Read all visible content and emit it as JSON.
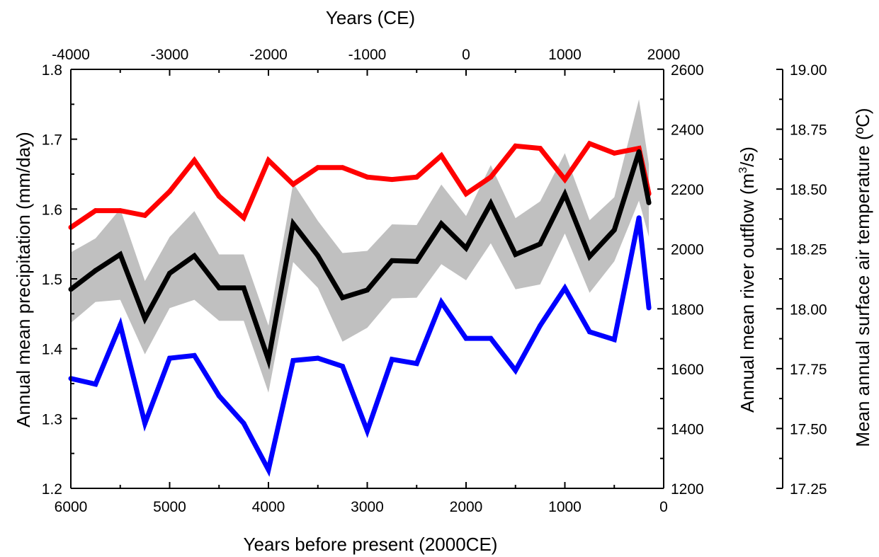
{
  "chart_data": {
    "type": "line",
    "title": "",
    "top_axis": {
      "label": "Years (CE)",
      "ticks": [
        "-4000",
        "-3000",
        "-2000",
        "-1000",
        "0",
        "1000",
        "2000"
      ]
    },
    "x_axis": {
      "label": "Years before present (2000CE)",
      "lim": [
        6000,
        0
      ],
      "ticks": [
        "6000",
        "5000",
        "4000",
        "3000",
        "2000",
        "1000",
        "0"
      ]
    },
    "y_left": {
      "label": "Annual mean precipitation (mm/day)",
      "lim": [
        1.2,
        1.8
      ],
      "ticks": [
        "1.2",
        "1.3",
        "1.4",
        "1.5",
        "1.6",
        "1.7",
        "1.8"
      ]
    },
    "y_right1": {
      "label_main": "Annual mean river outflow (m",
      "label_sup": "3",
      "label_end": "/s)",
      "lim": [
        1200,
        2600
      ],
      "ticks": [
        "1200",
        "1400",
        "1600",
        "1800",
        "2000",
        "2200",
        "2400",
        "2600"
      ]
    },
    "y_right2": {
      "label": "Mean annual surface air temperature (ºC)",
      "lim": [
        17.25,
        19.0
      ],
      "ticks": [
        "17.25",
        "17.50",
        "17.75",
        "18.00",
        "18.25",
        "18.50",
        "18.75",
        "19.00"
      ]
    },
    "x": [
      6000,
      5750,
      5500,
      5250,
      5000,
      4750,
      4500,
      4250,
      4000,
      3750,
      3500,
      3250,
      3000,
      2750,
      2500,
      2250,
      2000,
      1750,
      1500,
      1250,
      1000,
      750,
      500,
      250,
      150
    ],
    "series": [
      {
        "axis": "y_right2",
        "color": "#ff0000",
        "values": [
          18.34,
          18.41,
          18.41,
          18.39,
          18.49,
          18.62,
          18.47,
          18.38,
          18.62,
          18.52,
          18.59,
          18.59,
          18.55,
          18.54,
          18.55,
          18.64,
          18.48,
          18.55,
          18.68,
          18.67,
          18.54,
          18.69,
          18.65,
          18.67,
          18.48
        ]
      },
      {
        "axis": "y_right1",
        "color": "#0000ff",
        "values": [
          1567,
          1548,
          1746,
          1417,
          1635,
          1644,
          1509,
          1417,
          1262,
          1627,
          1635,
          1608,
          1392,
          1631,
          1617,
          1822,
          1701,
          1701,
          1594,
          1744,
          1869,
          1723,
          1697,
          2104,
          1803
        ]
      },
      {
        "axis": "y_left",
        "color": "#000000",
        "values": [
          1.485,
          1.512,
          1.535,
          1.443,
          1.508,
          1.533,
          1.487,
          1.487,
          1.384,
          1.579,
          1.533,
          1.473,
          1.484,
          1.526,
          1.525,
          1.579,
          1.544,
          1.608,
          1.535,
          1.55,
          1.621,
          1.532,
          1.57,
          1.682,
          1.609
        ]
      }
    ],
    "band": {
      "axis": "y_left",
      "color": "#c0c0c0",
      "upper": [
        1.538,
        1.558,
        1.6,
        1.497,
        1.56,
        1.597,
        1.535,
        1.535,
        1.433,
        1.637,
        1.583,
        1.537,
        1.54,
        1.578,
        1.577,
        1.635,
        1.59,
        1.663,
        1.587,
        1.611,
        1.68,
        1.584,
        1.617,
        1.757,
        1.664
      ],
      "lower": [
        1.437,
        1.467,
        1.47,
        1.392,
        1.458,
        1.47,
        1.44,
        1.44,
        1.337,
        1.524,
        1.487,
        1.41,
        1.43,
        1.472,
        1.473,
        1.521,
        1.498,
        1.551,
        1.485,
        1.492,
        1.565,
        1.48,
        1.525,
        1.612,
        1.56
      ]
    }
  }
}
